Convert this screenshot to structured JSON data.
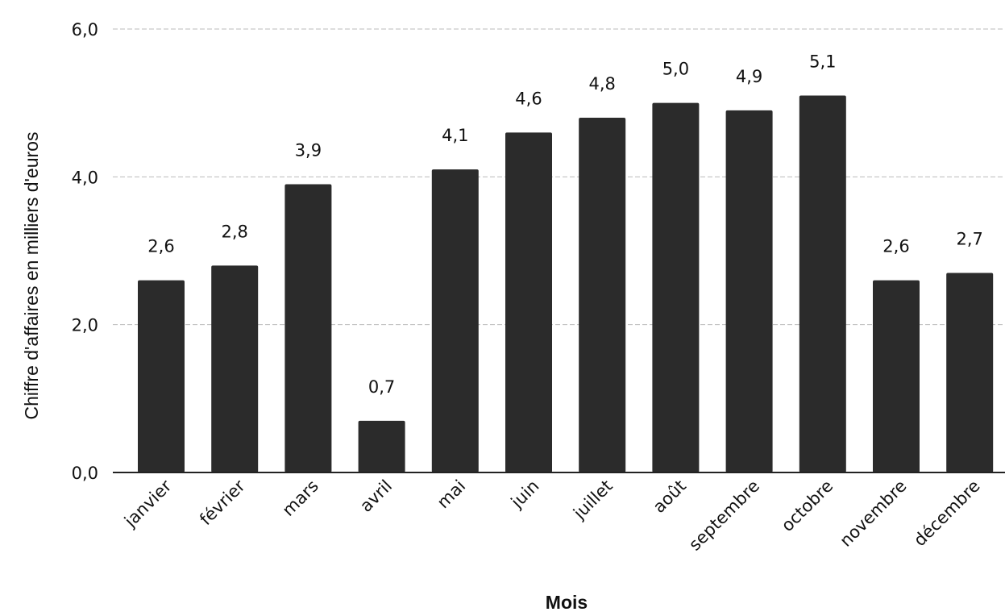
{
  "chart_data": {
    "type": "bar",
    "categories": [
      "janvier",
      "février",
      "mars",
      "avril",
      "mai",
      "juin",
      "juillet",
      "août",
      "septembre",
      "octobre",
      "novembre",
      "décembre"
    ],
    "values": [
      2.6,
      2.8,
      3.9,
      0.7,
      4.1,
      4.6,
      4.8,
      5.0,
      4.9,
      5.1,
      2.6,
      2.7
    ],
    "data_labels": [
      "2,6",
      "2,8",
      "3,9",
      "0,7",
      "4,1",
      "4,6",
      "4,8",
      "5,0",
      "4,9",
      "5,1",
      "2,6",
      "2,7"
    ],
    "xlabel": "Mois",
    "ylabel": "Chiffre d'affaires en milliers d'euros",
    "ylim": [
      0,
      6
    ],
    "y_ticks": [
      0,
      2,
      4,
      6
    ],
    "y_tick_labels": [
      "0,0",
      "2,0",
      "4,0",
      "6,0"
    ],
    "grid": true,
    "bar_color": "#2b2b2b",
    "grid_color": "#bbbbbb",
    "axis_color": "#222222"
  }
}
